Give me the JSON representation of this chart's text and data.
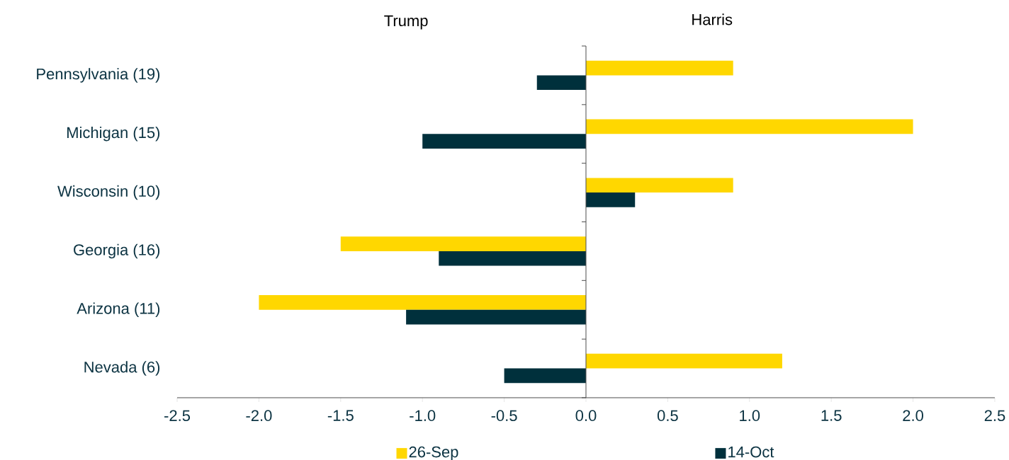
{
  "chart_data": {
    "type": "bar",
    "orientation": "horizontal",
    "categories": [
      "Pennsylvania (19)",
      "Michigan (15)",
      "Wisconsin (10)",
      "Georgia (16)",
      "Arizona (11)",
      "Nevada (6)"
    ],
    "series": [
      {
        "name": "26-Sep",
        "color": "#ffd700",
        "values": [
          0.9,
          2.0,
          0.9,
          -1.5,
          -2.0,
          1.2
        ]
      },
      {
        "name": "14-Oct",
        "color": "#00303c",
        "values": [
          -0.3,
          -1.0,
          0.3,
          -0.9,
          -1.1,
          -0.5
        ]
      }
    ],
    "xlim": [
      -2.5,
      2.5
    ],
    "xticks": [
      {
        "value": -2.5,
        "label": "-2.5"
      },
      {
        "value": -2.0,
        "label": "-2.0"
      },
      {
        "value": -1.5,
        "label": "-1.5"
      },
      {
        "value": -1.0,
        "label": "-1.0"
      },
      {
        "value": -0.5,
        "label": "-0.5"
      },
      {
        "value": 0,
        "label": "0.0"
      },
      {
        "value": 0.5,
        "label": "0.5"
      },
      {
        "value": 1.0,
        "label": "1.0"
      },
      {
        "value": 1.5,
        "label": "1.5"
      },
      {
        "value": 2.0,
        "label": "2.0"
      },
      {
        "value": 2.5,
        "label": "2.5"
      }
    ],
    "annotations": [
      "Trump",
      "Harris"
    ],
    "legend": "bottom"
  }
}
